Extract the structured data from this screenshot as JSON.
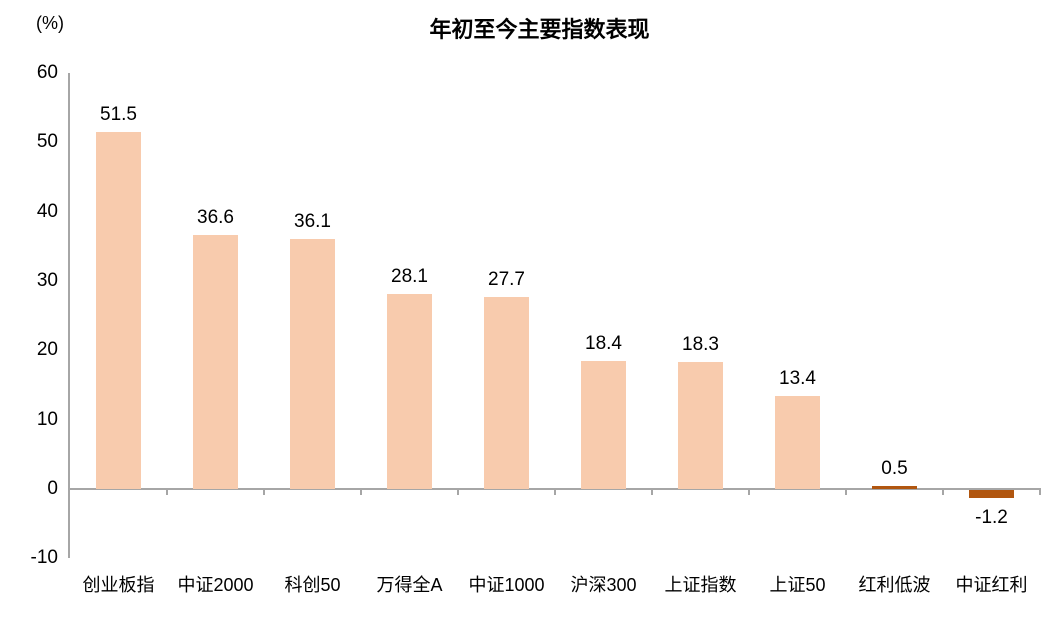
{
  "header": {
    "title": "年初至今主要指数表现",
    "unit_label": "(%)"
  },
  "colors": {
    "bar_light": "#F8CBAD",
    "bar_dark": "#B1560F",
    "axis": "#A6A6A6",
    "text": "#000000",
    "background": "#FFFFFF"
  },
  "chart_data": {
    "type": "bar",
    "title": "年初至今主要指数表现",
    "unit": "(%)",
    "categories": [
      "创业板指",
      "中证2000",
      "科创50",
      "万得全A",
      "中证1000",
      "沪深300",
      "上证指数",
      "上证50",
      "红利低波",
      "中证红利"
    ],
    "values": [
      51.5,
      36.6,
      36.1,
      28.1,
      27.7,
      18.4,
      18.3,
      13.4,
      0.5,
      -1.2
    ],
    "value_labels": [
      "51.5",
      "36.6",
      "36.1",
      "28.1",
      "27.7",
      "18.4",
      "18.3",
      "13.4",
      "0.5",
      "-1.2"
    ],
    "bar_colors": [
      "#F8CBAD",
      "#F8CBAD",
      "#F8CBAD",
      "#F8CBAD",
      "#F8CBAD",
      "#F8CBAD",
      "#F8CBAD",
      "#F8CBAD",
      "#B1560F",
      "#B1560F"
    ],
    "xlabel": "",
    "ylabel": "(%)",
    "ylim": [
      -10,
      60
    ],
    "yticks": [
      60,
      50,
      40,
      30,
      20,
      10,
      0,
      -10
    ],
    "grid": false,
    "legend": "none",
    "value_labels_shown": true
  }
}
